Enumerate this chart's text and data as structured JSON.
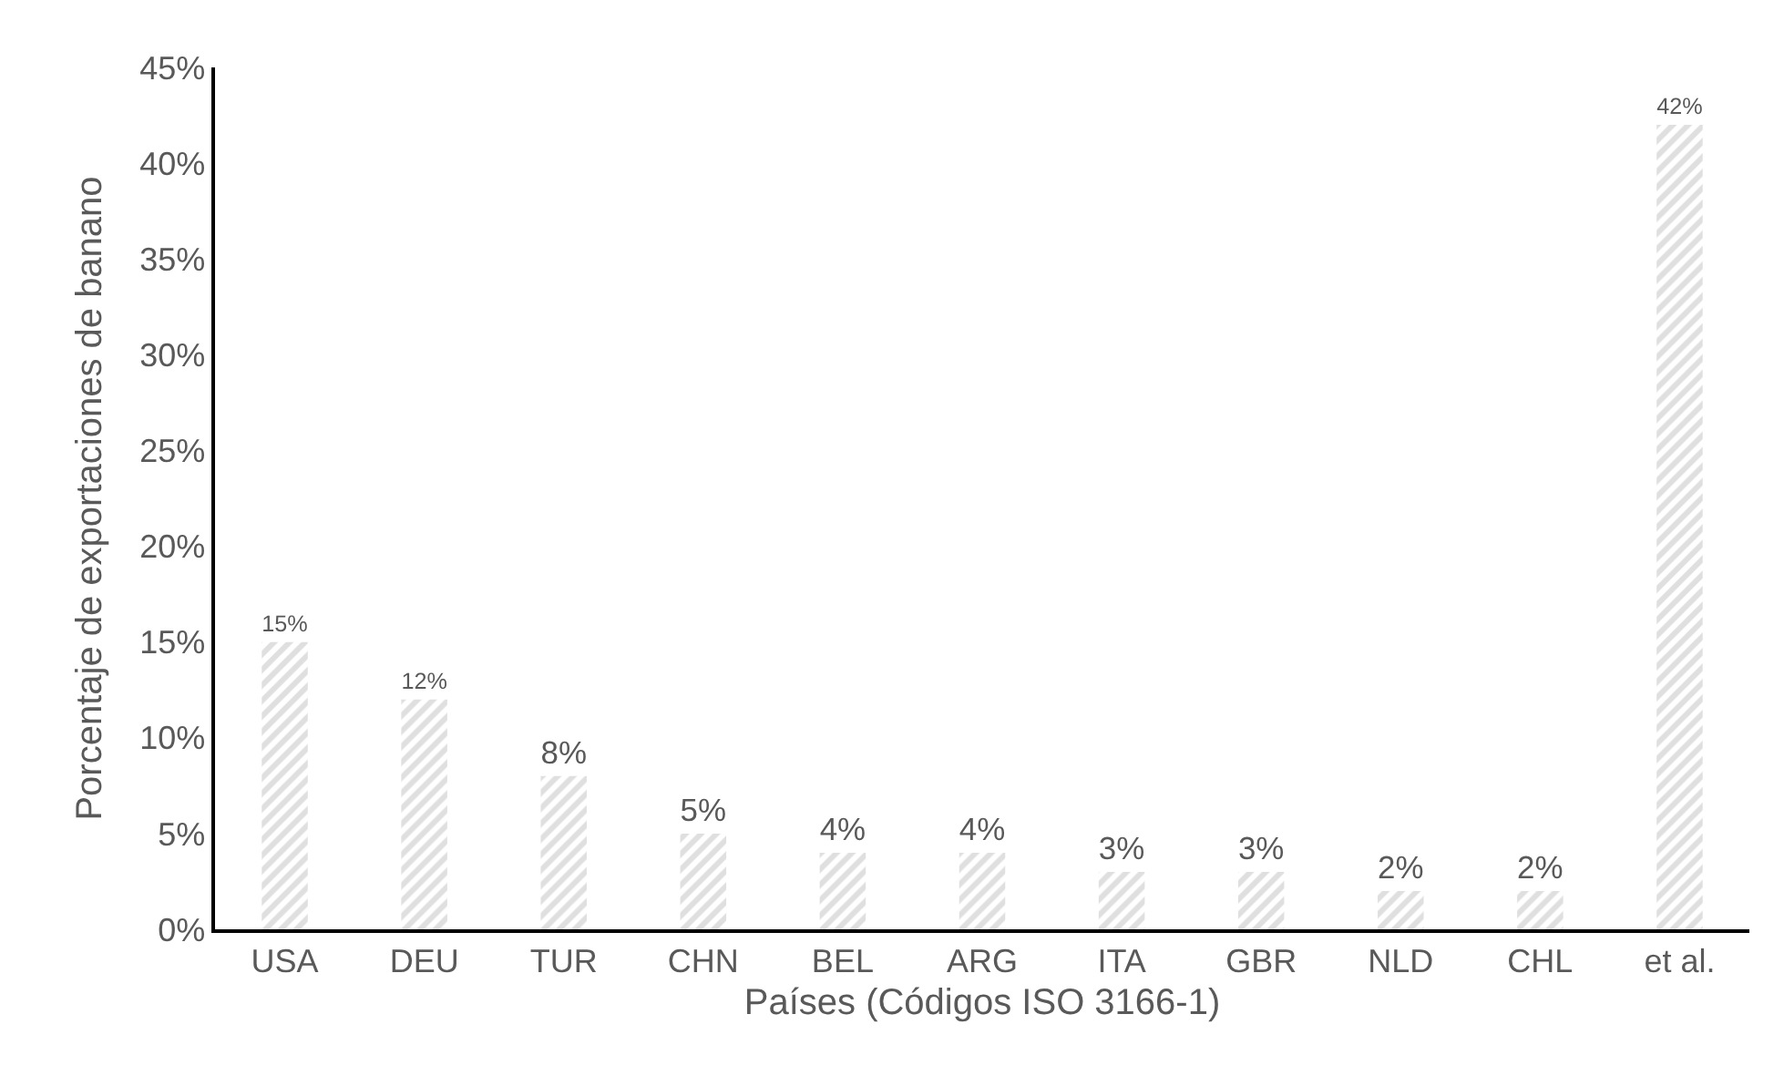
{
  "chart_data": {
    "type": "bar",
    "xlabel": "Países (Códigos ISO 3166-1)",
    "ylabel": "Porcentaje de exportaciones de banano",
    "categories": [
      "USA",
      "DEU",
      "TUR",
      "CHN",
      "BEL",
      "ARG",
      "ITA",
      "GBR",
      "NLD",
      "CHL",
      "et al."
    ],
    "values": [
      15,
      12,
      8,
      5,
      4,
      4,
      3,
      3,
      2,
      2,
      42
    ],
    "value_labels": [
      "15%",
      "12%",
      "8%",
      "5%",
      "4%",
      "4%",
      "3%",
      "3%",
      "2%",
      "2%",
      "42%"
    ],
    "color": "#bfbfbf",
    "ylim": [
      0,
      45
    ],
    "yticks": [
      {
        "value": 0,
        "label": "0%"
      },
      {
        "value": 5,
        "label": "5%"
      },
      {
        "value": 10,
        "label": "10%"
      },
      {
        "value": 15,
        "label": "15%"
      },
      {
        "value": 20,
        "label": "20%"
      },
      {
        "value": 25,
        "label": "25%"
      },
      {
        "value": 30,
        "label": "30%"
      },
      {
        "value": 35,
        "label": "35%"
      },
      {
        "value": 40,
        "label": "40%"
      },
      {
        "value": 45,
        "label": "45%"
      }
    ],
    "grid": false,
    "legend": false
  }
}
